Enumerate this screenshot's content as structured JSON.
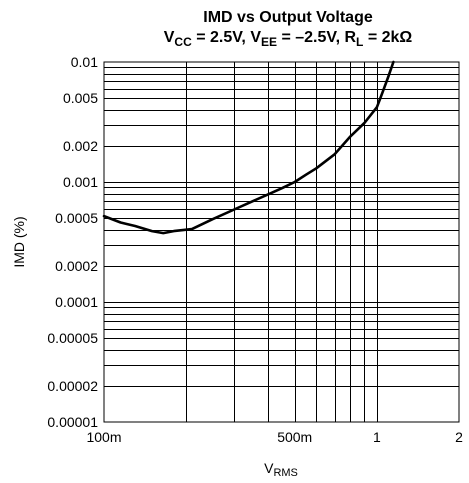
{
  "chart_data": {
    "type": "line",
    "title_line1": "IMD vs Output Voltage",
    "title_line2": {
      "parts": [
        {
          "t": "V"
        },
        {
          "t": "CC",
          "sub": true
        },
        {
          "t": " = 2.5V, V"
        },
        {
          "t": "EE",
          "sub": true
        },
        {
          "t": " = –2.5V, R"
        },
        {
          "t": "L",
          "sub": true
        },
        {
          "t": " = 2kΩ"
        }
      ]
    },
    "xlabel": {
      "main": "V",
      "sub": "RMS"
    },
    "ylabel": "IMD (%)",
    "x_scale": "log",
    "y_scale": "log",
    "xlim": [
      0.1,
      2
    ],
    "ylim": [
      1e-05,
      0.01
    ],
    "x_ticks": [
      {
        "value": 0.1,
        "label": "100m"
      },
      {
        "value": 0.5,
        "label": "500m"
      },
      {
        "value": 1,
        "label": "1"
      },
      {
        "value": 2,
        "label": "2"
      }
    ],
    "y_ticks": [
      {
        "value": 0.01,
        "label": "0.01"
      },
      {
        "value": 0.005,
        "label": "0.005"
      },
      {
        "value": 0.002,
        "label": "0.002"
      },
      {
        "value": 0.001,
        "label": "0.001"
      },
      {
        "value": 0.0005,
        "label": "0.0005"
      },
      {
        "value": 0.0002,
        "label": "0.0002"
      },
      {
        "value": 0.0001,
        "label": "0.0001"
      },
      {
        "value": 5e-05,
        "label": "0.00005"
      },
      {
        "value": 2e-05,
        "label": "0.00002"
      },
      {
        "value": 1e-05,
        "label": "0.00001"
      }
    ],
    "grid": true,
    "series": [
      {
        "color": "#000000",
        "x": [
          0.1,
          0.115,
          0.13,
          0.15,
          0.165,
          0.18,
          0.21,
          0.25,
          0.3,
          0.35,
          0.4,
          0.45,
          0.5,
          0.55,
          0.6,
          0.7,
          0.8,
          0.9,
          1.0,
          1.05,
          1.1,
          1.15
        ],
        "y": [
          0.00052,
          0.00046,
          0.00043,
          0.00039,
          0.000375,
          0.00039,
          0.000405,
          0.00049,
          0.00059,
          0.00069,
          0.00079,
          0.00089,
          0.001,
          0.00115,
          0.0013,
          0.0017,
          0.0024,
          0.0031,
          0.0042,
          0.0056,
          0.0075,
          0.0102
        ]
      }
    ]
  }
}
